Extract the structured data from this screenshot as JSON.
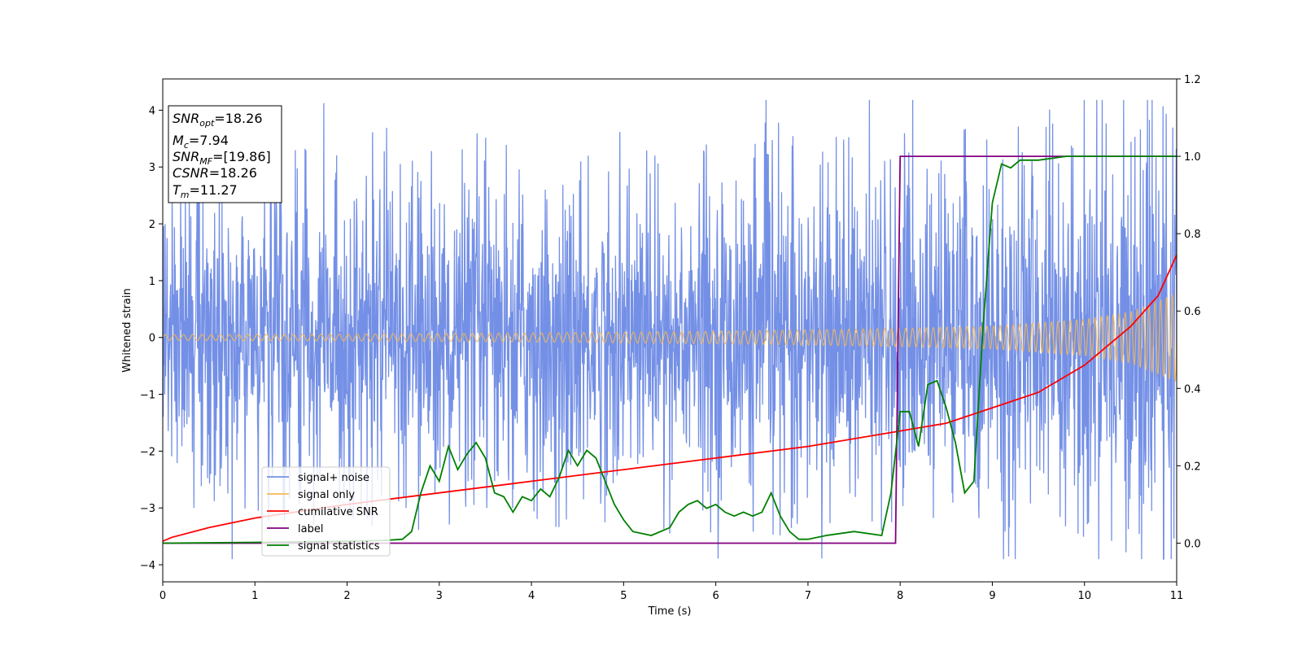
{
  "chart_data": {
    "type": "line",
    "xlabel": "Time (s)",
    "ylabel": "Whitened strain",
    "xlim": [
      0,
      11
    ],
    "ylim": [
      -4.3,
      4.55
    ],
    "y2lim": [
      -0.1,
      1.2
    ],
    "grid": false,
    "xticks": [
      "0",
      "1",
      "2",
      "3",
      "4",
      "5",
      "6",
      "7",
      "8",
      "9",
      "10",
      "11"
    ],
    "yticks": [
      "−4",
      "−3",
      "−2",
      "−1",
      "0",
      "1",
      "2",
      "3",
      "4"
    ],
    "y2ticks": [
      "0.0",
      "0.2",
      "0.4",
      "0.6",
      "0.8",
      "1.0",
      "1.2"
    ],
    "info_box": [
      {
        "label": "SNR",
        "sub": "opt",
        "value": "=18.26"
      },
      {
        "label": "M",
        "sub": "c",
        "value": "=7.94"
      },
      {
        "label": "SNR",
        "sub": "MF",
        "value": "=[19.86]"
      },
      {
        "label": "CSNR",
        "sub": "",
        "value": "=18.26"
      },
      {
        "label": "T",
        "sub": "m",
        "value": "=11.27"
      }
    ],
    "legend": {
      "placement": "lower-left",
      "entries": [
        "signal+ noise",
        "signal only",
        "cumilative SNR",
        "label",
        "signal statistics"
      ]
    },
    "colors": {
      "signal_noise": "#7490e6",
      "signal_only": "#f5b955",
      "cumulative_snr": "#ff0000",
      "label": "#800080",
      "signal_statistics": "#008000"
    },
    "series": [
      {
        "name": "signal+ noise",
        "axis": "left",
        "description_type": "noise",
        "envelope_x": [
          0,
          8,
          11
        ],
        "envelope_y": [
          2.2,
          2.4,
          3.2
        ],
        "min_y": -3.9,
        "max_y": 4.18
      },
      {
        "name": "signal only",
        "axis": "left",
        "amplitude_x": [
          0,
          2,
          4,
          6,
          8,
          9,
          10,
          10.5,
          11
        ],
        "amplitude_y": [
          0.05,
          0.06,
          0.08,
          0.11,
          0.16,
          0.2,
          0.32,
          0.45,
          0.78
        ]
      },
      {
        "name": "cumilative SNR",
        "axis": "right",
        "x": [
          0,
          0.1,
          0.5,
          1,
          2,
          3,
          4,
          5,
          6,
          7,
          8,
          8.5,
          9,
          9.5,
          10,
          10.5,
          10.8,
          11
        ],
        "y": [
          0.005,
          0.015,
          0.04,
          0.065,
          0.1,
          0.13,
          0.16,
          0.19,
          0.22,
          0.25,
          0.29,
          0.31,
          0.35,
          0.39,
          0.46,
          0.56,
          0.64,
          0.745
        ]
      },
      {
        "name": "label",
        "axis": "right",
        "x": [
          0,
          7.95,
          8.0,
          11
        ],
        "y": [
          0,
          0,
          1,
          1
        ]
      },
      {
        "name": "signal statistics",
        "axis": "right",
        "x": [
          0,
          1,
          2,
          2.4,
          2.6,
          2.7,
          2.8,
          2.9,
          3.0,
          3.1,
          3.2,
          3.3,
          3.4,
          3.5,
          3.6,
          3.7,
          3.8,
          3.9,
          4.0,
          4.1,
          4.2,
          4.3,
          4.4,
          4.5,
          4.6,
          4.7,
          4.8,
          4.9,
          5.0,
          5.1,
          5.3,
          5.5,
          5.6,
          5.7,
          5.8,
          5.9,
          6.0,
          6.1,
          6.2,
          6.3,
          6.4,
          6.5,
          6.6,
          6.7,
          6.8,
          6.9,
          7.0,
          7.2,
          7.5,
          7.8,
          7.9,
          8.0,
          8.1,
          8.2,
          8.3,
          8.4,
          8.5,
          8.6,
          8.7,
          8.8,
          8.9,
          9.0,
          9.1,
          9.2,
          9.3,
          9.5,
          9.8,
          10.2,
          11
        ],
        "y": [
          0,
          0.002,
          0.005,
          0.007,
          0.01,
          0.03,
          0.13,
          0.2,
          0.16,
          0.25,
          0.19,
          0.23,
          0.26,
          0.22,
          0.13,
          0.12,
          0.08,
          0.12,
          0.11,
          0.14,
          0.12,
          0.17,
          0.24,
          0.2,
          0.24,
          0.22,
          0.16,
          0.1,
          0.06,
          0.03,
          0.02,
          0.04,
          0.08,
          0.1,
          0.11,
          0.09,
          0.1,
          0.08,
          0.07,
          0.08,
          0.07,
          0.08,
          0.13,
          0.07,
          0.03,
          0.01,
          0.01,
          0.02,
          0.03,
          0.02,
          0.13,
          0.34,
          0.34,
          0.25,
          0.41,
          0.42,
          0.35,
          0.26,
          0.13,
          0.16,
          0.56,
          0.88,
          0.98,
          0.97,
          0.99,
          0.99,
          1.0,
          1.0,
          1.0
        ]
      }
    ]
  }
}
